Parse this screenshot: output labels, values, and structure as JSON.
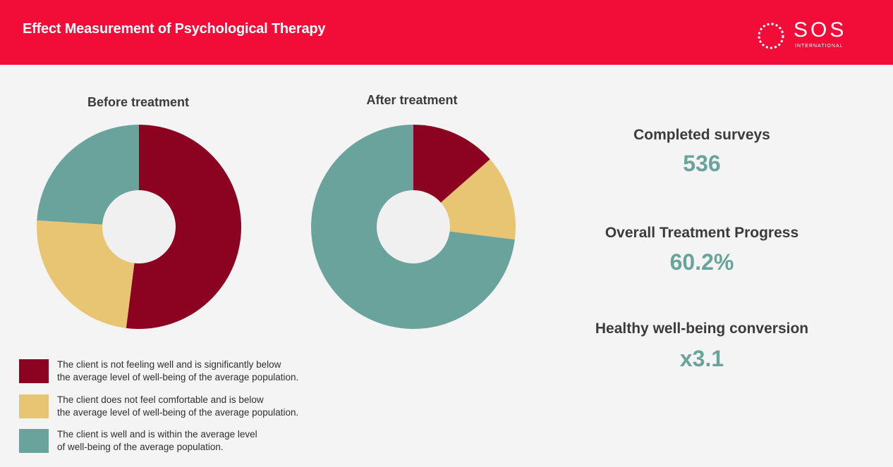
{
  "header": {
    "title": "Effect Measurement of Psychological Therapy",
    "background": "#f20c38",
    "logo": {
      "name": "SOS",
      "subtitle": "INTERNATIONAL"
    }
  },
  "colors": {
    "not_well": "#8b0320",
    "not_comfortable": "#e8c573",
    "well": "#6aa39c",
    "donut_hole": "#f0f0f0"
  },
  "chart_data": [
    {
      "type": "pie",
      "title": "Before treatment",
      "series": [
        {
          "values": [
            52,
            24,
            24
          ],
          "colors": [
            "#8b0320",
            "#e8c573",
            "#6aa39c"
          ]
        }
      ]
    },
    {
      "type": "pie",
      "title": "After treatment",
      "series": [
        {
          "values": [
            13.5,
            13.5,
            73
          ],
          "colors": [
            "#8b0320",
            "#e8c573",
            "#6aa39c"
          ]
        }
      ]
    }
  ],
  "stats": [
    {
      "label": "Completed surveys",
      "value": "536"
    },
    {
      "label": "Overall Treatment Progress",
      "value": "60.2%"
    },
    {
      "label": "Healthy well-being conversion",
      "value": "x3.1"
    }
  ],
  "legend": [
    {
      "color": "#8b0320",
      "line1": "The client is not feeling well and is significantly below",
      "line2": "the average level of well-being of the average population."
    },
    {
      "color": "#e8c573",
      "line1": "The client does not feel comfortable and is below",
      "line2": "the average level of well-being of the average population."
    },
    {
      "color": "#6aa39c",
      "line1": "The client is well and is within the average level",
      "line2": "of well-being of the average population."
    }
  ]
}
